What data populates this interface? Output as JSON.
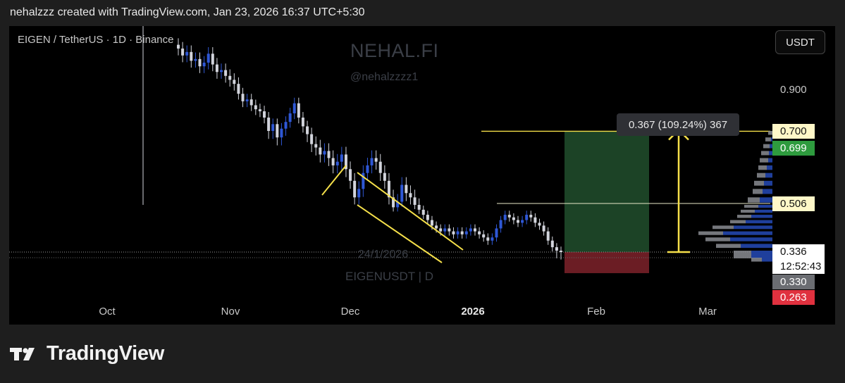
{
  "header": {
    "attribution": "nehalzzz created with TradingView.com, Jan 23, 2026 16:37 UTC+5:30"
  },
  "symbol_info": "EIGEN / TetherUS · 1D · Binance",
  "watermark": {
    "title": "NEHAL.FI",
    "handle": "@nehalzzzz1",
    "symbol": "EIGENUSDT | D",
    "date": "24/1/2026"
  },
  "currency": "USDT",
  "price_axis": {
    "ticks": [
      "0.900"
    ],
    "labels": {
      "target_line": "0.700",
      "take_profit": "0.699",
      "resistance": "0.506",
      "last_price": "0.336",
      "countdown": "12:52:43",
      "entry": "0.330",
      "stop": "0.263"
    }
  },
  "time_axis": {
    "months": [
      "Oct",
      "Nov",
      "Dec",
      "2026",
      "Feb",
      "Mar"
    ]
  },
  "measure_label": "0.367 (109.24%) 367",
  "footer": {
    "brand": "TradingView"
  },
  "colors": {
    "bull_candle": "#2f58d6",
    "bear_candle": "#d2d4dc",
    "annotation": "#f5e04a",
    "profit_zone": "#1f4a2a",
    "loss_zone": "#6b1d24",
    "take_profit_label": "#2e9b3e",
    "stop_label": "#e0313f",
    "entry_label": "#6b6d72",
    "volume_profile_up": "#1f3f9c",
    "volume_profile_down": "#8a8c92"
  },
  "chart_data": {
    "type": "candlestick",
    "pair": "EIGEN / TetherUS",
    "interval": "1D",
    "exchange": "Binance",
    "price_levels": {
      "target": 0.7,
      "take_profit": 0.699,
      "resistance": 0.506,
      "last": 0.336,
      "entry": 0.33,
      "stop": 0.263
    },
    "measured_move": {
      "change": 0.367,
      "percent": 109.24,
      "ticks": 367
    },
    "close_series": [
      1.12,
      1.08,
      1.1,
      1.05,
      1.06,
      1.02,
      1.04,
      1.09,
      1.03,
      0.99,
      1.0,
      0.97,
      0.95,
      0.93,
      0.88,
      0.84,
      0.85,
      0.82,
      0.8,
      0.79,
      0.76,
      0.7,
      0.73,
      0.68,
      0.71,
      0.74,
      0.78,
      0.83,
      0.76,
      0.72,
      0.69,
      0.66,
      0.65,
      0.63,
      0.64,
      0.62,
      0.6,
      0.61,
      0.63,
      0.59,
      0.56,
      0.52,
      0.54,
      0.58,
      0.6,
      0.62,
      0.61,
      0.58,
      0.56,
      0.52,
      0.49,
      0.51,
      0.55,
      0.53,
      0.52,
      0.5,
      0.48,
      0.46,
      0.44,
      0.42,
      0.41,
      0.4,
      0.41,
      0.4,
      0.39,
      0.4,
      0.39,
      0.4,
      0.41,
      0.4,
      0.39,
      0.38,
      0.37,
      0.38,
      0.41,
      0.44,
      0.46,
      0.45,
      0.44,
      0.43,
      0.44,
      0.46,
      0.45,
      0.43,
      0.42,
      0.4,
      0.37,
      0.35,
      0.34,
      0.336
    ],
    "volume_profile_rows": [
      [
        0.7,
        6,
        0
      ],
      [
        0.68,
        10,
        2
      ],
      [
        0.66,
        13,
        4
      ],
      [
        0.64,
        16,
        5
      ],
      [
        0.62,
        18,
        6
      ],
      [
        0.6,
        20,
        8
      ],
      [
        0.58,
        22,
        10
      ],
      [
        0.56,
        26,
        12
      ],
      [
        0.54,
        28,
        14
      ],
      [
        0.52,
        35,
        18
      ],
      [
        0.5,
        40,
        20
      ],
      [
        0.48,
        45,
        25
      ],
      [
        0.46,
        50,
        30
      ],
      [
        0.44,
        60,
        38
      ],
      [
        0.42,
        85,
        55
      ],
      [
        0.4,
        105,
        70
      ],
      [
        0.38,
        95,
        60
      ],
      [
        0.36,
        80,
        45
      ],
      [
        0.34,
        55,
        30
      ],
      [
        0.33,
        30,
        15
      ]
    ]
  }
}
